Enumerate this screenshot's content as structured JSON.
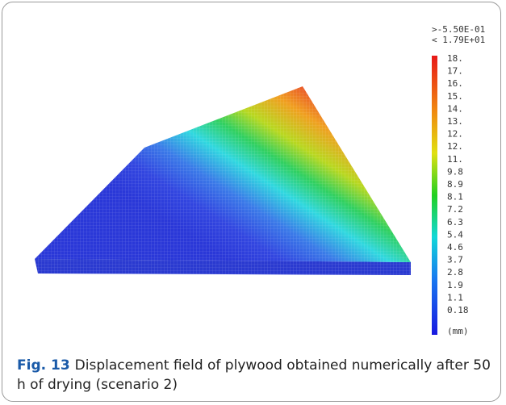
{
  "figure": {
    "legend": {
      "header": [
        ">-5.50E-01",
        "< 1.79E+01"
      ],
      "labels": [
        "18.",
        "17.",
        "16.",
        "15.",
        "14.",
        "13.",
        "12.",
        "12.",
        "11.",
        "9.8",
        "8.9",
        "8.1",
        "7.2",
        "6.3",
        "5.4",
        "4.6",
        "3.7",
        "2.8",
        "1.9",
        "1.1",
        "0.18"
      ],
      "unit": "(mm)"
    },
    "caption": {
      "label": "Fig. 13",
      "text": "Displacement field of plywood obtained numerically after 50 h of drying (scenario 2)"
    }
  }
}
